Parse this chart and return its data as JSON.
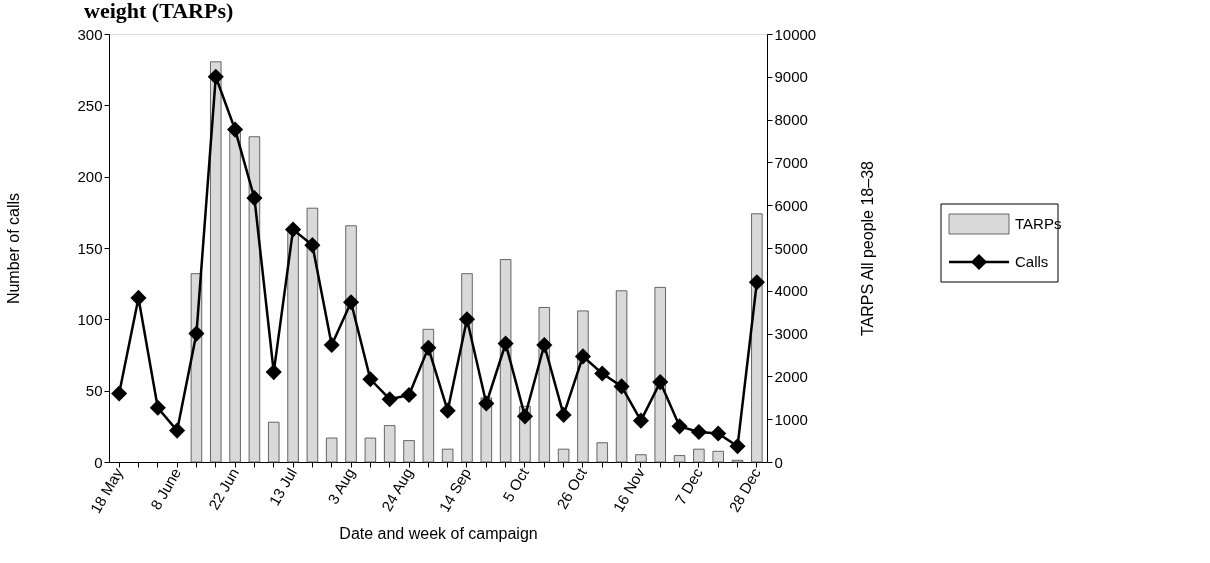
{
  "chart_data": {
    "type": "bar",
    "title": "weight (TARPs)",
    "xlabel": "Date and week of campaign",
    "ylabel": "Number of calls",
    "y2label": "TARPS All people 18–38",
    "categories": [
      "18 May",
      null,
      null,
      "8 June",
      null,
      null,
      "22 Jun",
      null,
      null,
      "13 Jul",
      null,
      null,
      "3 Aug",
      null,
      null,
      "24 Aug",
      null,
      null,
      "14 Sep",
      null,
      null,
      "5 Oct",
      null,
      null,
      "26 Oct",
      null,
      null,
      "16 Nov",
      null,
      null,
      "7 Dec",
      null,
      null,
      "28 Dec"
    ],
    "series": [
      {
        "name": "TARPs",
        "axis": "y2",
        "color": "#d9d9d9",
        "values": [
          null,
          null,
          null,
          null,
          4400,
          9350,
          7700,
          7600,
          930,
          5400,
          5930,
          560,
          5520,
          560,
          850,
          500,
          3100,
          300,
          4400,
          1500,
          4730,
          1300,
          3610,
          300,
          3530,
          450,
          4000,
          170,
          4080,
          150,
          300,
          250,
          40,
          5800
        ]
      },
      {
        "name": "Calls",
        "type": "line",
        "color": "#000000",
        "values": [
          48,
          115,
          38,
          22,
          90,
          270,
          233,
          185,
          63,
          163,
          152,
          82,
          112,
          58,
          44,
          47,
          80,
          36,
          100,
          41,
          83,
          32,
          82,
          33,
          74,
          62,
          53,
          29,
          56,
          25,
          21,
          20,
          11,
          126
        ]
      }
    ],
    "ylim": [
      0,
      300
    ],
    "yticks": [
      0,
      50,
      100,
      150,
      200,
      250,
      300
    ],
    "y2lim": [
      0,
      10000
    ],
    "y2ticks": [
      0,
      1000,
      2000,
      3000,
      4000,
      5000,
      6000,
      7000,
      8000,
      9000,
      10000
    ],
    "marker": "diamond",
    "line_style": "solid",
    "legend": "right",
    "grid": false
  }
}
